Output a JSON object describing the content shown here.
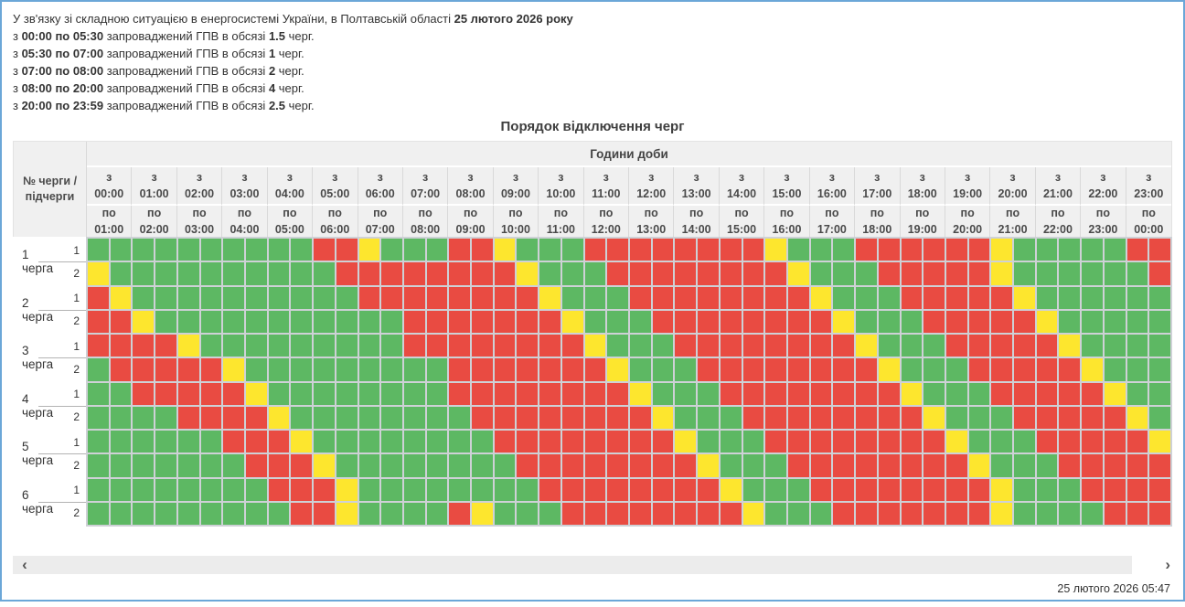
{
  "notice": {
    "lines": [
      [
        {
          "text": "У зв'язку зі складною ситуацією в енергосистемі України, в Полтавській області ",
          "bold": false
        },
        {
          "text": "25 лютого 2026 року",
          "bold": true
        }
      ],
      [
        {
          "text": "з ",
          "bold": false
        },
        {
          "text": "00:00 по 05:30",
          "bold": true
        },
        {
          "text": " запроваджений ГПВ в обсязі ",
          "bold": false
        },
        {
          "text": "1.5",
          "bold": true
        },
        {
          "text": " черг.",
          "bold": false
        }
      ],
      [
        {
          "text": "з ",
          "bold": false
        },
        {
          "text": "05:30 по 07:00",
          "bold": true
        },
        {
          "text": " запроваджений ГПВ в обсязі ",
          "bold": false
        },
        {
          "text": "1",
          "bold": true
        },
        {
          "text": " черг.",
          "bold": false
        }
      ],
      [
        {
          "text": "з ",
          "bold": false
        },
        {
          "text": "07:00 по 08:00",
          "bold": true
        },
        {
          "text": " запроваджений ГПВ в обсязі ",
          "bold": false
        },
        {
          "text": "2",
          "bold": true
        },
        {
          "text": " черг.",
          "bold": false
        }
      ],
      [
        {
          "text": "з ",
          "bold": false
        },
        {
          "text": "08:00 по 20:00",
          "bold": true
        },
        {
          "text": " запроваджений ГПВ в обсязі ",
          "bold": false
        },
        {
          "text": "4",
          "bold": true
        },
        {
          "text": " черг.",
          "bold": false
        }
      ],
      [
        {
          "text": "з ",
          "bold": false
        },
        {
          "text": "20:00 по 23:59",
          "bold": true
        },
        {
          "text": " запроваджений ГПВ в обсязі ",
          "bold": false
        },
        {
          "text": "2.5",
          "bold": true
        },
        {
          "text": " черг.",
          "bold": false
        }
      ]
    ]
  },
  "table": {
    "title": "Порядок відключення черг",
    "corner_header": "№ черги / підчерги",
    "hours_header": "Години доби",
    "columns": [
      {
        "from": "з 00:00",
        "to": "по 01:00"
      },
      {
        "from": "з 01:00",
        "to": "по 02:00"
      },
      {
        "from": "з 02:00",
        "to": "по 03:00"
      },
      {
        "from": "з 03:00",
        "to": "по 04:00"
      },
      {
        "from": "з 04:00",
        "to": "по 05:00"
      },
      {
        "from": "з 05:00",
        "to": "по 06:00"
      },
      {
        "from": "з 06:00",
        "to": "по 07:00"
      },
      {
        "from": "з 07:00",
        "to": "по 08:00"
      },
      {
        "from": "з 08:00",
        "to": "по 09:00"
      },
      {
        "from": "з 09:00",
        "to": "по 10:00"
      },
      {
        "from": "з 10:00",
        "to": "по 11:00"
      },
      {
        "from": "з 11:00",
        "to": "по 12:00"
      },
      {
        "from": "з 12:00",
        "to": "по 13:00"
      },
      {
        "from": "з 13:00",
        "to": "по 14:00"
      },
      {
        "from": "з 14:00",
        "to": "по 15:00"
      },
      {
        "from": "з 15:00",
        "to": "по 16:00"
      },
      {
        "from": "з 16:00",
        "to": "по 17:00"
      },
      {
        "from": "з 17:00",
        "to": "по 18:00"
      },
      {
        "from": "з 18:00",
        "to": "по 19:00"
      },
      {
        "from": "з 19:00",
        "to": "по 20:00"
      },
      {
        "from": "з 20:00",
        "to": "по 21:00"
      },
      {
        "from": "з 21:00",
        "to": "по 22:00"
      },
      {
        "from": "з 22:00",
        "to": "по 23:00"
      },
      {
        "from": "з 23:00",
        "to": "по 00:00"
      }
    ],
    "cell_legend": {
      "G": "power-on-half-hour",
      "R": "power-off-half-hour",
      "Y": "partial-half-hour"
    },
    "queues": [
      {
        "label": "1 черга",
        "subs": [
          {
            "num": "1",
            "cells": "GGGGGGGGGGRRYGGGRRYGGGRRRRRRRRYGGGRRRRRRYGGGGGRR"
          },
          {
            "num": "2",
            "cells": "YGGGGGGGGGGRRRRRRRRYGGGRRRRRRRRYGGGRRRRRYGGGGGGR"
          }
        ]
      },
      {
        "label": "2 черга",
        "subs": [
          {
            "num": "1",
            "cells": "RYGGGGGGGGGGRRRRRRRRYGGGRRRRRRRRYGGGRRRRRYGGGGGG"
          },
          {
            "num": "2",
            "cells": "RRYGGGGGGGGGGGRRRRRRRYGGGRRRRRRRRYGGGRRRRRYGGGGG"
          }
        ]
      },
      {
        "label": "3 черга",
        "subs": [
          {
            "num": "1",
            "cells": "RRRRYGGGGGGGGGRRRRRRRRYGGGRRRRRRRRYGGGRRRRRYGGGG"
          },
          {
            "num": "2",
            "cells": "GRRRRRYGGGGGGGGGRRRRRRRYGGGRRRRRRRRYGGGRRRRRYGGG"
          }
        ]
      },
      {
        "label": "4 черга",
        "subs": [
          {
            "num": "1",
            "cells": "GGRRRRRYGGGGGGGGRRRRRRRRYGGGRRRRRRRRYGGGRRRRRYGG"
          },
          {
            "num": "2",
            "cells": "GGGGRRRRYGGGGGGGGRRRRRRRRYGGGRRRRRRRRYGGGRRRRRYG"
          }
        ]
      },
      {
        "label": "5 черга",
        "subs": [
          {
            "num": "1",
            "cells": "GGGGGGRRRYGGGGGGGGRRRRRRRRYGGGRRRRRRRRYGGGRRRRRY"
          },
          {
            "num": "2",
            "cells": "GGGGGGGRRRYGGGGGGGGRRRRRRRRYGGGRRRRRRRRYGGGRRRRR"
          }
        ]
      },
      {
        "label": "6 черга",
        "subs": [
          {
            "num": "1",
            "cells": "GGGGGGGGRRRYGGGGGGGGRRRRRRRRYGGGRRRRRRRRYGGGRRRR"
          },
          {
            "num": "2",
            "cells": "GGGGGGGGGRRYGGGGRYGGGRRRRRRRRYGGGRRRRRRRYGGGGRRR"
          }
        ]
      }
    ]
  },
  "colors": {
    "on": "#5db863",
    "off": "#e94b42",
    "half": "#fde62e",
    "grout": "#ced1d6",
    "header_bg": "#f0f0f0",
    "panel_border": "#6ba7d8"
  },
  "footer": {
    "scroll_left": "‹",
    "scroll_right": "›",
    "timestamp": "25 лютого 2026 05:47"
  }
}
